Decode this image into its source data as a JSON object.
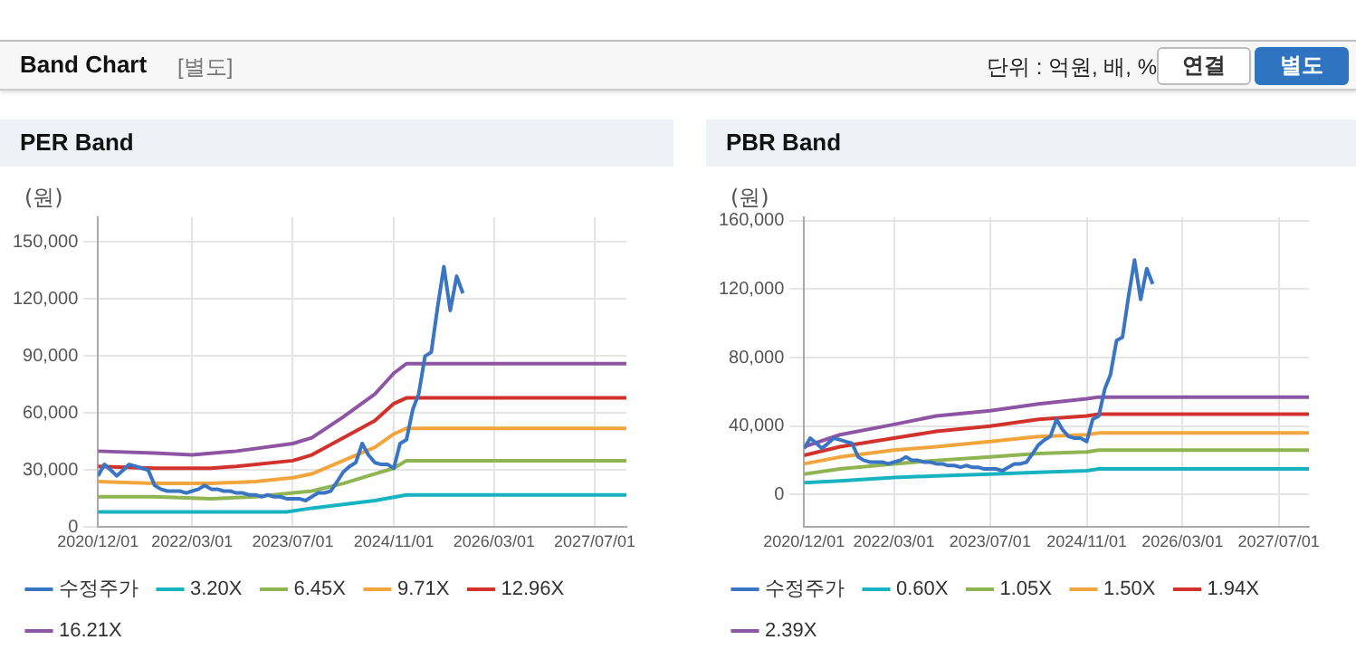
{
  "chart_data": [
    {
      "type": "other",
      "title": "Band Chart",
      "subtitle": "[별도]",
      "annotations": [
        "단위 : 억원, 배, %",
        "연결",
        "별도"
      ]
    },
    {
      "type": "line",
      "title": "PER Band",
      "ylabel": "(원)",
      "marker": "none",
      "grid": true,
      "legend": "bottom",
      "xlim": [
        "2020-12-01",
        "2027-12-01"
      ],
      "xticks": [
        {
          "value": "2020-12-01",
          "label": "2020/12/01"
        },
        {
          "value": "2022-03-01",
          "label": "2022/03/01"
        },
        {
          "value": "2023-07-01",
          "label": "2023/07/01"
        },
        {
          "value": "2024-11-01",
          "label": "2024/11/01"
        },
        {
          "value": "2026-03-01",
          "label": "2026/03/01"
        },
        {
          "value": "2027-07-01",
          "label": "2027/07/01"
        }
      ],
      "ylim": [
        0,
        163000
      ],
      "yticks": [
        {
          "value": 0,
          "label": "0"
        },
        {
          "value": 30000,
          "label": "30,000"
        },
        {
          "value": 60000,
          "label": "60,000"
        },
        {
          "value": 90000,
          "label": "90,000"
        },
        {
          "value": 120000,
          "label": "120,000"
        },
        {
          "value": 150000,
          "label": "150,000"
        }
      ],
      "series": [
        {
          "name": "수정주가",
          "color": "#3a75c4",
          "x": [
            "2020-12-01",
            "2021-01-01",
            "2021-02-01",
            "2021-03-01",
            "2021-04-01",
            "2021-05-01",
            "2021-06-01",
            "2021-07-01",
            "2021-08-01",
            "2021-09-01",
            "2021-10-01",
            "2021-11-01",
            "2021-12-01",
            "2022-01-01",
            "2022-02-01",
            "2022-03-01",
            "2022-04-01",
            "2022-05-01",
            "2022-06-01",
            "2022-07-01",
            "2022-08-01",
            "2022-09-01",
            "2022-10-01",
            "2022-11-01",
            "2022-12-01",
            "2023-01-01",
            "2023-02-01",
            "2023-03-01",
            "2023-04-01",
            "2023-05-01",
            "2023-06-01",
            "2023-07-01",
            "2023-08-01",
            "2023-09-01",
            "2023-10-01",
            "2023-11-01",
            "2023-12-01",
            "2024-01-01",
            "2024-02-01",
            "2024-03-01",
            "2024-04-01",
            "2024-05-01",
            "2024-06-01",
            "2024-07-01",
            "2024-08-01",
            "2024-09-01",
            "2024-10-01",
            "2024-11-01",
            "2024-12-01",
            "2025-01-01",
            "2025-02-01",
            "2025-03-01",
            "2025-04-01",
            "2025-05-01",
            "2025-06-01",
            "2025-07-01",
            "2025-08-01",
            "2025-09-01",
            "2025-10-01"
          ],
          "values": [
            27000,
            33000,
            30000,
            27000,
            30000,
            33000,
            32000,
            31000,
            30000,
            22000,
            20000,
            19000,
            19000,
            19000,
            18000,
            19000,
            20000,
            22000,
            20000,
            20000,
            19000,
            19000,
            18000,
            18000,
            17000,
            17000,
            16000,
            17000,
            16000,
            16000,
            15000,
            15000,
            15000,
            14000,
            16000,
            18000,
            18000,
            19000,
            24000,
            29000,
            32000,
            34000,
            44000,
            38000,
            34000,
            33000,
            33000,
            31000,
            44000,
            46000,
            62000,
            70000,
            90000,
            92000,
            116000,
            137000,
            114000,
            132000,
            123000
          ]
        },
        {
          "name": "3.20X",
          "color": "#17b3c1",
          "x": [
            "2020-12-01",
            "2023-06-01",
            "2023-10-01",
            "2024-03-01",
            "2024-08-01",
            "2025-01-01",
            "2027-12-01"
          ],
          "values": [
            8000,
            8000,
            10000,
            12000,
            14000,
            17000,
            17000
          ]
        },
        {
          "name": "6.45X",
          "color": "#8fb552",
          "x": [
            "2020-12-01",
            "2021-09-01",
            "2022-06-01",
            "2023-01-01",
            "2023-07-01",
            "2023-10-01",
            "2024-03-01",
            "2024-07-01",
            "2024-11-01",
            "2025-01-01",
            "2027-12-01"
          ],
          "values": [
            16000,
            16000,
            15000,
            16000,
            18000,
            19000,
            23000,
            27000,
            31000,
            35000,
            35000
          ]
        },
        {
          "name": "9.71X",
          "color": "#f2a53c",
          "x": [
            "2020-12-01",
            "2021-09-01",
            "2022-06-01",
            "2023-01-01",
            "2023-07-01",
            "2023-10-01",
            "2024-03-01",
            "2024-08-01",
            "2024-11-01",
            "2025-01-01",
            "2027-12-01"
          ],
          "values": [
            24000,
            23000,
            23000,
            24000,
            26000,
            28000,
            35000,
            42000,
            49000,
            52000,
            52000
          ]
        },
        {
          "name": "12.96X",
          "color": "#d1332c",
          "x": [
            "2020-12-01",
            "2021-09-01",
            "2022-06-01",
            "2022-10-01",
            "2023-07-01",
            "2023-10-01",
            "2024-03-01",
            "2024-08-01",
            "2024-11-01",
            "2025-01-01",
            "2027-12-01"
          ],
          "values": [
            32000,
            31000,
            31000,
            32000,
            35000,
            38000,
            47000,
            56000,
            65000,
            68000,
            68000
          ]
        },
        {
          "name": "16.21X",
          "color": "#8e55a4",
          "x": [
            "2020-12-01",
            "2021-09-01",
            "2022-03-01",
            "2022-10-01",
            "2023-07-01",
            "2023-10-01",
            "2024-03-01",
            "2024-08-01",
            "2024-11-01",
            "2025-01-01",
            "2027-12-01"
          ],
          "values": [
            40000,
            39000,
            38000,
            40000,
            44000,
            47000,
            58000,
            70000,
            81000,
            86000,
            86000
          ]
        }
      ]
    },
    {
      "type": "line",
      "title": "PBR Band",
      "ylabel": "(원)",
      "marker": "none",
      "grid": true,
      "legend": "bottom",
      "xlim": [
        "2020-12-01",
        "2027-12-01"
      ],
      "xticks": [
        {
          "value": "2020-12-01",
          "label": "2020/12/01"
        },
        {
          "value": "2022-03-01",
          "label": "2022/03/01"
        },
        {
          "value": "2023-07-01",
          "label": "2023/07/01"
        },
        {
          "value": "2024-11-01",
          "label": "2024/11/01"
        },
        {
          "value": "2026-03-01",
          "label": "2026/03/01"
        },
        {
          "value": "2027-07-01",
          "label": "2027/07/01"
        }
      ],
      "ylim": [
        -19000,
        162000
      ],
      "yticks": [
        {
          "value": 0,
          "label": "0"
        },
        {
          "value": 40000,
          "label": "40,000"
        },
        {
          "value": 80000,
          "label": "80,000"
        },
        {
          "value": 120000,
          "label": "120,000"
        },
        {
          "value": 160000,
          "label": "160,000"
        }
      ],
      "series": [
        {
          "name": "수정주가",
          "color": "#3a75c4",
          "x": [
            "2020-12-01",
            "2021-01-01",
            "2021-02-01",
            "2021-03-01",
            "2021-04-01",
            "2021-05-01",
            "2021-06-01",
            "2021-07-01",
            "2021-08-01",
            "2021-09-01",
            "2021-10-01",
            "2021-11-01",
            "2021-12-01",
            "2022-01-01",
            "2022-02-01",
            "2022-03-01",
            "2022-04-01",
            "2022-05-01",
            "2022-06-01",
            "2022-07-01",
            "2022-08-01",
            "2022-09-01",
            "2022-10-01",
            "2022-11-01",
            "2022-12-01",
            "2023-01-01",
            "2023-02-01",
            "2023-03-01",
            "2023-04-01",
            "2023-05-01",
            "2023-06-01",
            "2023-07-01",
            "2023-08-01",
            "2023-09-01",
            "2023-10-01",
            "2023-11-01",
            "2023-12-01",
            "2024-01-01",
            "2024-02-01",
            "2024-03-01",
            "2024-04-01",
            "2024-05-01",
            "2024-06-01",
            "2024-07-01",
            "2024-08-01",
            "2024-09-01",
            "2024-10-01",
            "2024-11-01",
            "2024-12-01",
            "2025-01-01",
            "2025-02-01",
            "2025-03-01",
            "2025-04-01",
            "2025-05-01",
            "2025-06-01",
            "2025-07-01",
            "2025-08-01",
            "2025-09-01",
            "2025-10-01"
          ],
          "values": [
            27000,
            33000,
            30000,
            27000,
            30000,
            33000,
            32000,
            31000,
            30000,
            22000,
            20000,
            19000,
            19000,
            19000,
            18000,
            19000,
            20000,
            22000,
            20000,
            20000,
            19000,
            19000,
            18000,
            18000,
            17000,
            17000,
            16000,
            17000,
            16000,
            16000,
            15000,
            15000,
            15000,
            14000,
            16000,
            18000,
            18000,
            19000,
            24000,
            29000,
            32000,
            34000,
            44000,
            38000,
            34000,
            33000,
            33000,
            31000,
            44000,
            46000,
            62000,
            70000,
            90000,
            92000,
            116000,
            137000,
            114000,
            132000,
            123000
          ]
        },
        {
          "name": "0.60X",
          "color": "#17b3c1",
          "x": [
            "2020-12-01",
            "2021-06-01",
            "2022-03-01",
            "2022-10-01",
            "2023-07-01",
            "2024-03-01",
            "2024-11-01",
            "2025-01-01",
            "2027-12-01"
          ],
          "values": [
            7000,
            8000,
            10000,
            11000,
            12000,
            13000,
            14000,
            15000,
            15000
          ]
        },
        {
          "name": "1.05X",
          "color": "#8fb552",
          "x": [
            "2020-12-01",
            "2021-06-01",
            "2022-03-01",
            "2022-10-01",
            "2023-07-01",
            "2024-03-01",
            "2024-11-01",
            "2025-01-01",
            "2027-12-01"
          ],
          "values": [
            12000,
            15000,
            18000,
            20000,
            22000,
            24000,
            25000,
            26000,
            26000
          ]
        },
        {
          "name": "1.50X",
          "color": "#f2a53c",
          "x": [
            "2020-12-01",
            "2021-06-01",
            "2022-03-01",
            "2022-10-01",
            "2023-07-01",
            "2024-03-01",
            "2024-11-01",
            "2025-01-01",
            "2027-12-01"
          ],
          "values": [
            18000,
            22000,
            26000,
            28000,
            31000,
            34000,
            35000,
            36000,
            36000
          ]
        },
        {
          "name": "1.94X",
          "color": "#d1332c",
          "x": [
            "2020-12-01",
            "2021-06-01",
            "2022-03-01",
            "2022-10-01",
            "2023-07-01",
            "2024-03-01",
            "2024-11-01",
            "2025-01-01",
            "2027-12-01"
          ],
          "values": [
            23000,
            28000,
            33000,
            37000,
            40000,
            44000,
            46000,
            47000,
            47000
          ]
        },
        {
          "name": "2.39X",
          "color": "#8e55a4",
          "x": [
            "2020-12-01",
            "2021-06-01",
            "2022-03-01",
            "2022-10-01",
            "2023-07-01",
            "2024-03-01",
            "2024-11-01",
            "2025-01-01",
            "2027-12-01"
          ],
          "values": [
            28000,
            35000,
            41000,
            46000,
            49000,
            53000,
            56000,
            57000,
            57000
          ]
        }
      ]
    }
  ]
}
